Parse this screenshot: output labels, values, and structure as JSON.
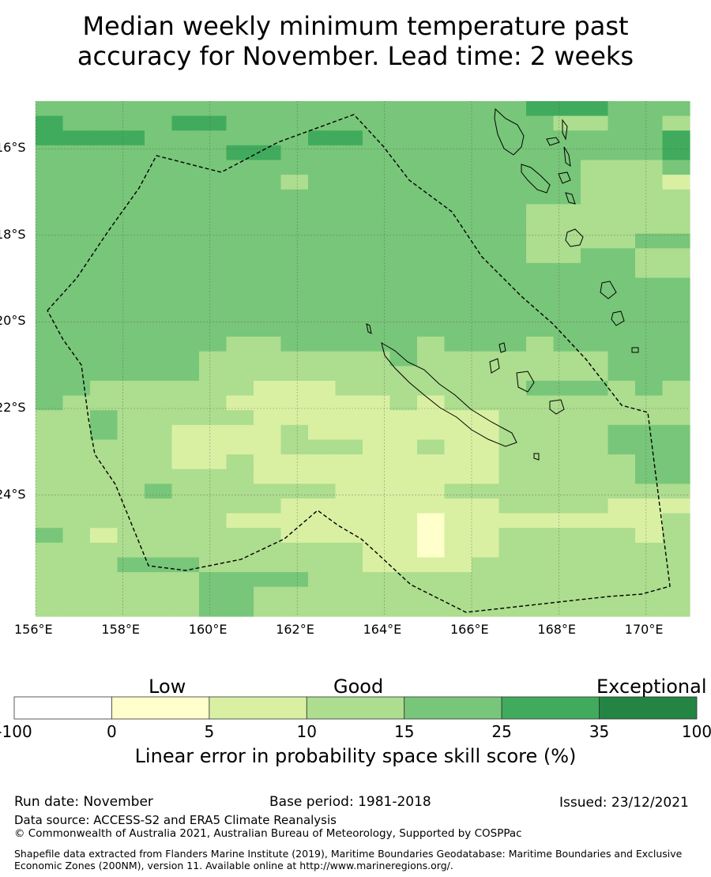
{
  "title": {
    "line1": "Median weekly minimum temperature past",
    "line2": "accuracy for November. Lead time: 2 weeks"
  },
  "map": {
    "lon_range": [
      156,
      171
    ],
    "lat_range": [
      -26.8,
      -14.9
    ],
    "lon_ticks": [
      "156°E",
      "158°E",
      "160°E",
      "162°E",
      "164°E",
      "166°E",
      "168°E",
      "170°E"
    ],
    "lat_ticks": [
      "16°S",
      "18°S",
      "20°S",
      "22°S",
      "24°S"
    ],
    "boundary_style": "dashed",
    "grid": "0..5 color class index, rows north to south",
    "cells": [
      "444444444444444444555444",
      "544445544444444444433443",
      "555544444455444444444445",
      "444444455444444444444445",
      "444444444444444444443334",
      "444444444344444444443332",
      "444444444444444444443333",
      "444444444444444444333333",
      "444444444444444444333333",
      "444444444444444444333344",
      "444444444444444444334433",
      "444444444444444444444433",
      "444444444444444444444444",
      "444444444444444444444444",
      "444444444444444444444444",
      "444444444444444444444444",
      "444444433444443444344444",
      "444444333333343333333444",
      "444444333333333333333444",
      "443333332223333333444343",
      "433333322222232333333333",
      "334333332222222223333333",
      "334332222322222223333444",
      "333332222333223223333444",
      "333332232222222223333344",
      "333333332222222223333344",
      "333343333332222333333333",
      "333333333222222223333222",
      "333333322222221222222223",
      "432333333222221223333323",
      "333333333333221223333333",
      "333444333333222233333333",
      "333333444433333333333333",
      "333333443333333333333333",
      "333333443333333333333333"
    ]
  },
  "colorbar": {
    "categories": {
      "low": "Low",
      "good": "Good",
      "exceptional": "Exceptional"
    },
    "ticks": [
      "-100",
      "0",
      "5",
      "10",
      "15",
      "25",
      "35",
      "100"
    ],
    "colors": [
      "#ffffff",
      "#ffffcc",
      "#d9f0a3",
      "#addd8e",
      "#78c679",
      "#41ab5d",
      "#238443"
    ],
    "title": "Linear error in probability space skill score (%)"
  },
  "footer": {
    "run_date": "Run date: November",
    "base_period": "Base period: 1981-2018",
    "issued": "Issued: 23/12/2021",
    "data_source": "Data source: ACCESS-S2 and ERA5 Climate Reanalysis",
    "copyright": "© Commonwealth of Australia 2021, Australian Bureau of Meteorology, Supported by COSPPac",
    "shapefile": "Shapefile data extracted from Flanders Marine Institute (2019), Maritime Boundaries Geodatabase: Maritime Boundaries and Exclusive Economic Zones (200NM), version 11. Available online at http://www.marineregions.org/."
  }
}
